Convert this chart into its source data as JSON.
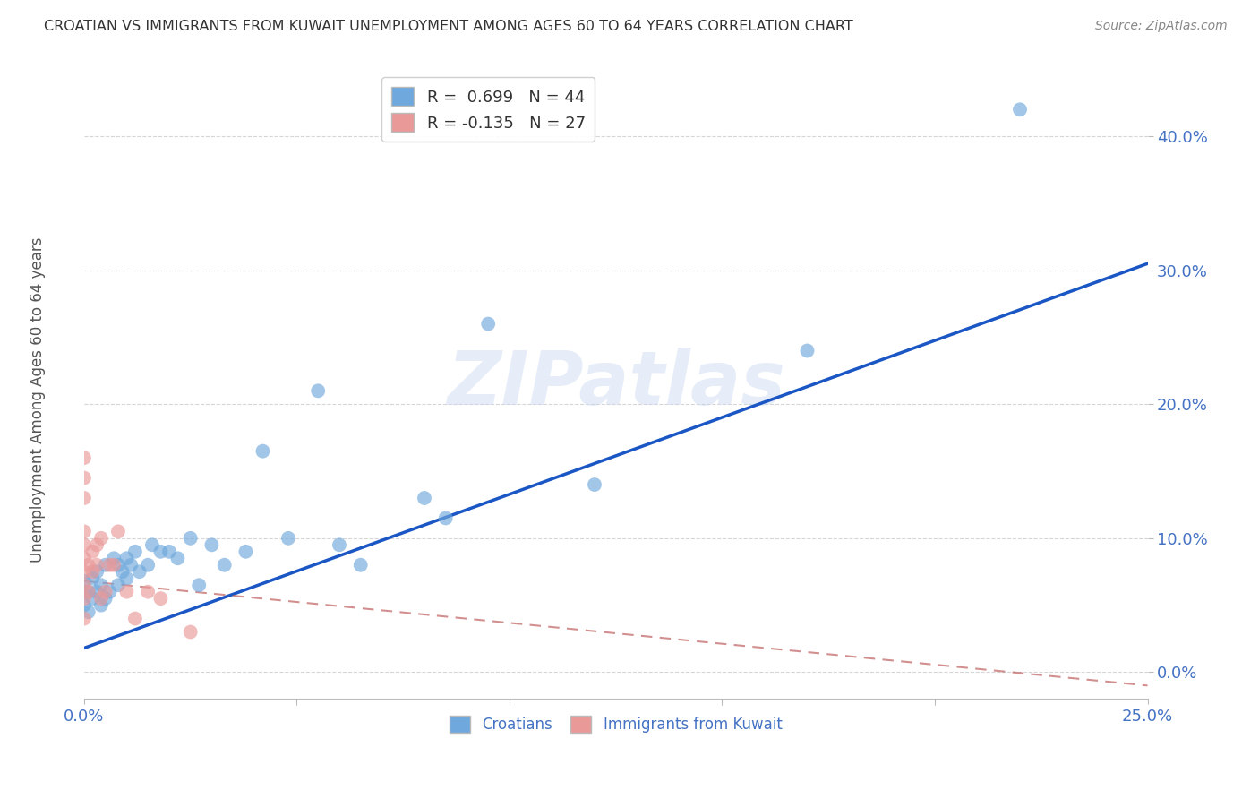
{
  "title": "CROATIAN VS IMMIGRANTS FROM KUWAIT UNEMPLOYMENT AMONG AGES 60 TO 64 YEARS CORRELATION CHART",
  "source": "Source: ZipAtlas.com",
  "ylabel": "Unemployment Among Ages 60 to 64 years",
  "xlim": [
    0.0,
    0.25
  ],
  "ylim": [
    -0.02,
    0.45
  ],
  "croatian_color": "#6fa8dc",
  "kuwait_color": "#ea9999",
  "trendline_croatian_color": "#1a56c4",
  "trendline_kuwait_color": "#c06060",
  "background_color": "#ffffff",
  "grid_color": "#cccccc",
  "axis_color": "#4472c4",
  "watermark": "ZIPatlas",
  "croatian_R": 0.699,
  "croatian_N": 44,
  "kuwait_R": -0.135,
  "kuwait_N": 27,
  "croatian_x": [
    0.0,
    0.0,
    0.0,
    0.001,
    0.001,
    0.002,
    0.002,
    0.003,
    0.003,
    0.004,
    0.004,
    0.005,
    0.005,
    0.006,
    0.007,
    0.008,
    0.008,
    0.009,
    0.01,
    0.01,
    0.011,
    0.012,
    0.013,
    0.015,
    0.016,
    0.018,
    0.02,
    0.022,
    0.025,
    0.027,
    0.03,
    0.033,
    0.038,
    0.042,
    0.048,
    0.055,
    0.06,
    0.065,
    0.08,
    0.085,
    0.095,
    0.12,
    0.17,
    0.22
  ],
  "croatian_y": [
    0.05,
    0.06,
    0.068,
    0.045,
    0.06,
    0.055,
    0.07,
    0.06,
    0.075,
    0.05,
    0.065,
    0.055,
    0.08,
    0.06,
    0.085,
    0.065,
    0.08,
    0.075,
    0.07,
    0.085,
    0.08,
    0.09,
    0.075,
    0.08,
    0.095,
    0.09,
    0.09,
    0.085,
    0.1,
    0.065,
    0.095,
    0.08,
    0.09,
    0.165,
    0.1,
    0.21,
    0.095,
    0.08,
    0.13,
    0.115,
    0.26,
    0.14,
    0.24,
    0.42
  ],
  "kuwait_x": [
    0.0,
    0.0,
    0.0,
    0.0,
    0.0,
    0.0,
    0.0,
    0.0,
    0.0,
    0.0,
    0.001,
    0.001,
    0.002,
    0.002,
    0.003,
    0.003,
    0.004,
    0.004,
    0.005,
    0.006,
    0.007,
    0.008,
    0.01,
    0.012,
    0.015,
    0.018,
    0.025
  ],
  "kuwait_y": [
    0.04,
    0.055,
    0.065,
    0.075,
    0.085,
    0.095,
    0.105,
    0.13,
    0.145,
    0.16,
    0.06,
    0.08,
    0.075,
    0.09,
    0.08,
    0.095,
    0.1,
    0.055,
    0.06,
    0.08,
    0.08,
    0.105,
    0.06,
    0.04,
    0.06,
    0.055,
    0.03
  ],
  "ytick_vals": [
    0.0,
    0.1,
    0.2,
    0.3,
    0.4
  ],
  "ytick_labels": [
    "0.0%",
    "10.0%",
    "20.0%",
    "30.0%",
    "40.0%"
  ],
  "xtick_vals": [
    0.0,
    0.05,
    0.1,
    0.15,
    0.2,
    0.25
  ],
  "xtick_edge_labels": {
    "0": "0.0%",
    "5": "25.0%"
  }
}
